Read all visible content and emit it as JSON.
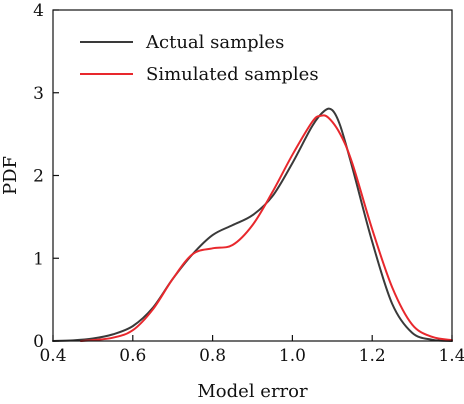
{
  "chart_data": {
    "type": "line",
    "title": "",
    "xlabel": "Model error",
    "ylabel": "PDF",
    "xlim": [
      0.4,
      1.4
    ],
    "ylim": [
      0,
      4
    ],
    "xticks": [
      "0.4",
      "0.6",
      "0.8",
      "1.0",
      "1.2",
      "1.4"
    ],
    "yticks": [
      "0",
      "1",
      "2",
      "3",
      "4"
    ],
    "grid": false,
    "legend_position": "top-left",
    "series": [
      {
        "name": "Actual samples",
        "color": "#3a3a3a",
        "points": [
          [
            0.4,
            0.0
          ],
          [
            0.45,
            0.008
          ],
          [
            0.5,
            0.03
          ],
          [
            0.55,
            0.08
          ],
          [
            0.6,
            0.18
          ],
          [
            0.65,
            0.4
          ],
          [
            0.7,
            0.75
          ],
          [
            0.75,
            1.05
          ],
          [
            0.8,
            1.28
          ],
          [
            0.85,
            1.4
          ],
          [
            0.9,
            1.52
          ],
          [
            0.95,
            1.75
          ],
          [
            1.0,
            2.15
          ],
          [
            1.05,
            2.6
          ],
          [
            1.08,
            2.78
          ],
          [
            1.1,
            2.79
          ],
          [
            1.12,
            2.6
          ],
          [
            1.15,
            2.1
          ],
          [
            1.2,
            1.2
          ],
          [
            1.25,
            0.45
          ],
          [
            1.3,
            0.1
          ],
          [
            1.35,
            0.015
          ],
          [
            1.4,
            0.0
          ]
        ]
      },
      {
        "name": "Simulated samples",
        "color": "#e8282d",
        "points": [
          [
            0.47,
            0.0
          ],
          [
            0.5,
            0.01
          ],
          [
            0.55,
            0.04
          ],
          [
            0.6,
            0.13
          ],
          [
            0.65,
            0.38
          ],
          [
            0.7,
            0.75
          ],
          [
            0.75,
            1.05
          ],
          [
            0.8,
            1.12
          ],
          [
            0.85,
            1.16
          ],
          [
            0.9,
            1.4
          ],
          [
            0.95,
            1.8
          ],
          [
            1.0,
            2.25
          ],
          [
            1.05,
            2.65
          ],
          [
            1.07,
            2.72
          ],
          [
            1.09,
            2.7
          ],
          [
            1.12,
            2.5
          ],
          [
            1.15,
            2.15
          ],
          [
            1.2,
            1.35
          ],
          [
            1.25,
            0.65
          ],
          [
            1.3,
            0.2
          ],
          [
            1.35,
            0.05
          ],
          [
            1.4,
            0.01
          ]
        ]
      }
    ]
  }
}
